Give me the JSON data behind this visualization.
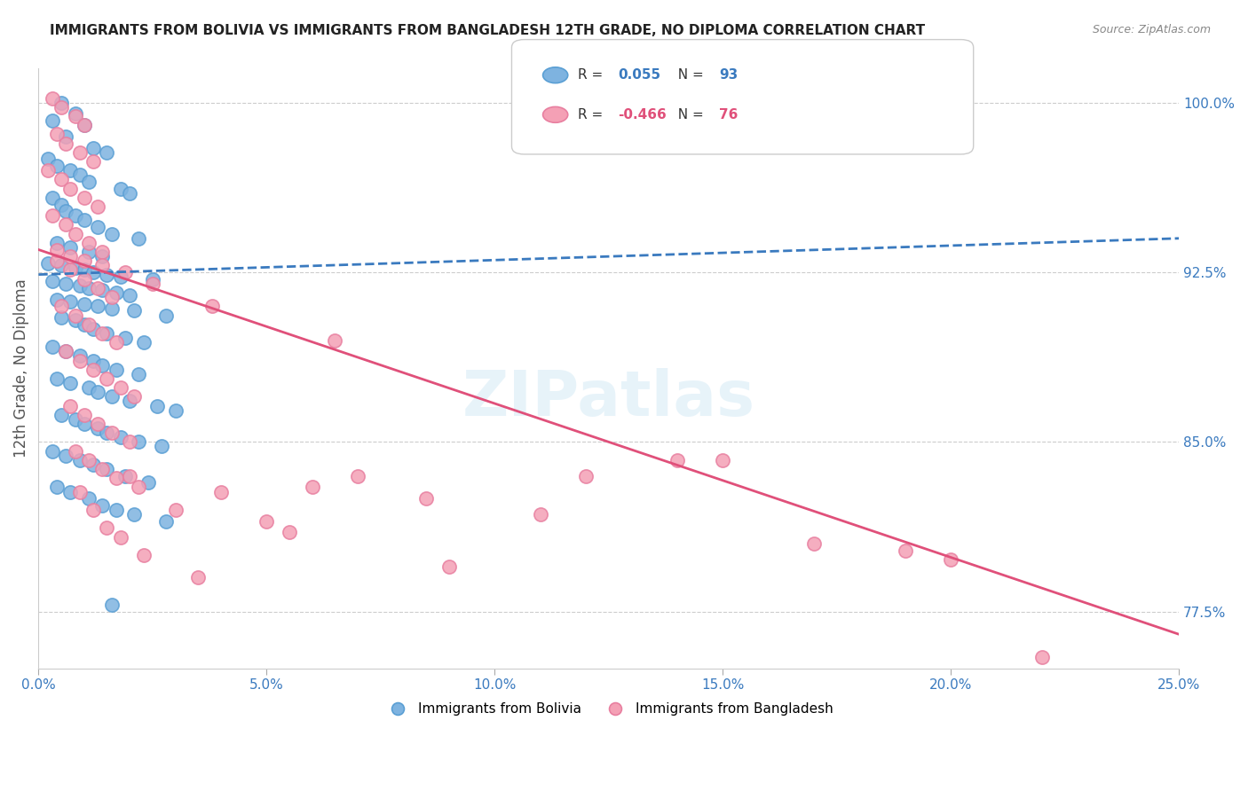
{
  "title": "IMMIGRANTS FROM BOLIVIA VS IMMIGRANTS FROM BANGLADESH 12TH GRADE, NO DIPLOMA CORRELATION CHART",
  "source": "Source: ZipAtlas.com",
  "ylabel_label": "12th Grade, No Diploma",
  "yticks": [
    77.5,
    85.0,
    92.5,
    100.0
  ],
  "xticks": [
    0.0,
    5.0,
    10.0,
    15.0,
    20.0,
    25.0
  ],
  "xlim": [
    0.0,
    25.0
  ],
  "ylim": [
    75.0,
    101.5
  ],
  "bolivia_color": "#7eb3e0",
  "bangladesh_color": "#f4a0b5",
  "bolivia_edge_color": "#5a9fd4",
  "bangladesh_edge_color": "#e87fa0",
  "bolivia_line_color": "#3a7abf",
  "bangladesh_line_color": "#e0507a",
  "bolivia_trend_x": [
    0.0,
    25.0
  ],
  "bolivia_trend_y": [
    92.4,
    94.0
  ],
  "bangladesh_trend_x": [
    0.0,
    25.0
  ],
  "bangladesh_trend_y": [
    93.5,
    76.5
  ],
  "legend_label_bolivia": "Immigrants from Bolivia",
  "legend_label_bangladesh": "Immigrants from Bangladesh",
  "watermark": "ZIPatlas",
  "bolivia_points_x": [
    0.5,
    0.8,
    1.0,
    0.3,
    0.6,
    1.2,
    1.5,
    0.2,
    0.4,
    0.7,
    0.9,
    1.1,
    1.8,
    2.0,
    0.3,
    0.5,
    0.6,
    0.8,
    1.0,
    1.3,
    1.6,
    2.2,
    0.4,
    0.7,
    1.1,
    1.4,
    0.2,
    0.5,
    0.8,
    1.0,
    1.2,
    1.5,
    1.8,
    2.5,
    0.3,
    0.6,
    0.9,
    1.1,
    1.4,
    1.7,
    2.0,
    0.4,
    0.7,
    1.0,
    1.3,
    1.6,
    2.1,
    2.8,
    0.5,
    0.8,
    1.0,
    1.2,
    1.5,
    1.9,
    2.3,
    0.3,
    0.6,
    0.9,
    1.2,
    1.4,
    1.7,
    2.2,
    0.4,
    0.7,
    1.1,
    1.3,
    1.6,
    2.0,
    2.6,
    3.0,
    0.5,
    0.8,
    1.0,
    1.3,
    1.5,
    1.8,
    2.2,
    2.7,
    0.3,
    0.6,
    0.9,
    1.2,
    1.5,
    1.9,
    2.4,
    0.4,
    0.7,
    1.1,
    1.4,
    1.7,
    2.1,
    2.8,
    1.6
  ],
  "bolivia_points_y": [
    100.0,
    99.5,
    99.0,
    99.2,
    98.5,
    98.0,
    97.8,
    97.5,
    97.2,
    97.0,
    96.8,
    96.5,
    96.2,
    96.0,
    95.8,
    95.5,
    95.2,
    95.0,
    94.8,
    94.5,
    94.2,
    94.0,
    93.8,
    93.6,
    93.4,
    93.2,
    92.9,
    92.8,
    92.7,
    92.6,
    92.5,
    92.4,
    92.3,
    92.2,
    92.1,
    92.0,
    91.9,
    91.8,
    91.7,
    91.6,
    91.5,
    91.3,
    91.2,
    91.1,
    91.0,
    90.9,
    90.8,
    90.6,
    90.5,
    90.4,
    90.2,
    90.0,
    89.8,
    89.6,
    89.4,
    89.2,
    89.0,
    88.8,
    88.6,
    88.4,
    88.2,
    88.0,
    87.8,
    87.6,
    87.4,
    87.2,
    87.0,
    86.8,
    86.6,
    86.4,
    86.2,
    86.0,
    85.8,
    85.6,
    85.4,
    85.2,
    85.0,
    84.8,
    84.6,
    84.4,
    84.2,
    84.0,
    83.8,
    83.5,
    83.2,
    83.0,
    82.8,
    82.5,
    82.2,
    82.0,
    81.8,
    81.5,
    77.8
  ],
  "bangladesh_points_x": [
    0.3,
    0.5,
    0.8,
    1.0,
    0.4,
    0.6,
    0.9,
    1.2,
    0.2,
    0.5,
    0.7,
    1.0,
    1.3,
    0.3,
    0.6,
    0.8,
    1.1,
    1.4,
    0.4,
    0.7,
    1.0,
    1.3,
    1.6,
    0.5,
    0.8,
    1.1,
    1.4,
    1.7,
    0.6,
    0.9,
    1.2,
    1.5,
    1.8,
    2.1,
    0.7,
    1.0,
    1.3,
    1.6,
    2.0,
    0.8,
    1.1,
    1.4,
    1.7,
    2.2,
    3.0,
    5.0,
    7.0,
    8.5,
    11.0,
    14.0,
    17.0,
    20.0,
    0.9,
    1.2,
    1.5,
    1.8,
    2.3,
    3.5,
    5.5,
    2.0,
    4.0,
    6.0,
    9.0,
    12.0,
    15.0,
    19.0,
    22.0,
    0.4,
    0.7,
    1.0,
    1.4,
    1.9,
    2.5,
    3.8,
    6.5
  ],
  "bangladesh_points_y": [
    100.2,
    99.8,
    99.4,
    99.0,
    98.6,
    98.2,
    97.8,
    97.4,
    97.0,
    96.6,
    96.2,
    95.8,
    95.4,
    95.0,
    94.6,
    94.2,
    93.8,
    93.4,
    93.0,
    92.6,
    92.2,
    91.8,
    91.4,
    91.0,
    90.6,
    90.2,
    89.8,
    89.4,
    89.0,
    88.6,
    88.2,
    87.8,
    87.4,
    87.0,
    86.6,
    86.2,
    85.8,
    85.4,
    85.0,
    84.6,
    84.2,
    83.8,
    83.4,
    83.0,
    82.0,
    81.5,
    83.5,
    82.5,
    81.8,
    84.2,
    80.5,
    79.8,
    82.8,
    82.0,
    81.2,
    80.8,
    80.0,
    79.0,
    81.0,
    83.5,
    82.8,
    83.0,
    79.5,
    83.5,
    84.2,
    80.2,
    75.5,
    93.5,
    93.2,
    93.0,
    92.8,
    92.5,
    92.0,
    91.0,
    89.5
  ]
}
